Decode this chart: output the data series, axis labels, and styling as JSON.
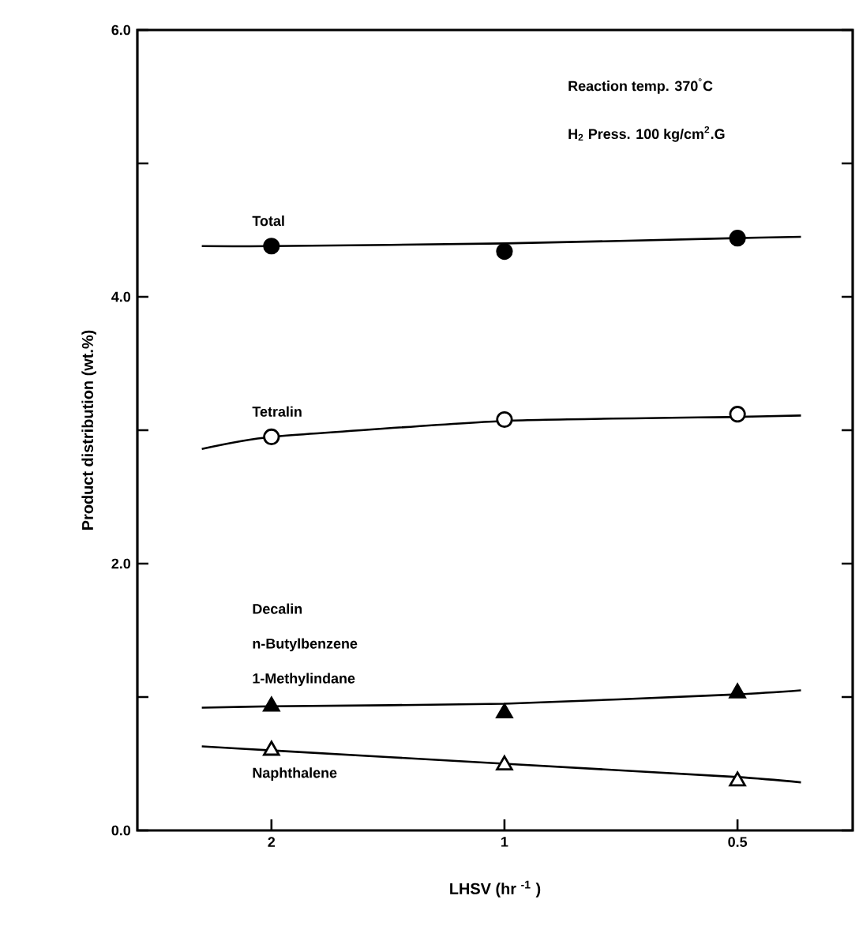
{
  "chart_data": {
    "type": "scatter",
    "xlabel": "LHSV  (hr $^{-1}$ )",
    "ylabel": "Product distribution (wt.%)",
    "log": "x",
    "xlim": [
      2.98,
      0.355
    ],
    "xticks": [
      2,
      1,
      0.5
    ],
    "ylim": [
      0,
      6
    ],
    "yticks": [
      {
        "value": 0,
        "label": "0.0"
      },
      {
        "value": 1,
        "label": null
      },
      {
        "value": 2,
        "label": "2.0"
      },
      {
        "value": 3,
        "label": null
      },
      {
        "value": 4,
        "label": "4.0"
      },
      {
        "value": 5,
        "label": null
      },
      {
        "value": 6,
        "label": "6.0"
      }
    ],
    "series": [
      {
        "name": "Total",
        "marker": "circle",
        "color": "#000000",
        "x": [
          2,
          1,
          0.5
        ],
        "values": [
          4.38,
          4.34,
          4.44
        ]
      },
      {
        "name": "Tetralin",
        "marker": "circle",
        "color": "#ffffff",
        "x": [
          2,
          1,
          0.5
        ],
        "values": [
          2.95,
          3.08,
          3.12
        ]
      },
      {
        "name": "Decalin n-Butylbenzene 1-Methylindane",
        "marker": "triangle",
        "color": "#000000",
        "x": [
          2,
          1,
          0.5
        ],
        "values": [
          0.93,
          0.88,
          1.03
        ]
      },
      {
        "name": "Naphthalene",
        "marker": "triangle",
        "color": "#ffffff",
        "x": [
          2,
          1,
          0.5
        ],
        "values": [
          0.6,
          0.49,
          0.37
        ]
      },
      {
        "type": "line",
        "color": "#000000",
        "x": [
          2.46,
          2,
          1,
          0.5,
          0.414
        ],
        "values": [
          4.38,
          4.38,
          4.4,
          4.44,
          4.45
        ]
      },
      {
        "type": "line",
        "color": "#000000",
        "x": [
          2.46,
          2,
          1,
          0.5,
          0.414
        ],
        "values": [
          2.86,
          2.95,
          3.07,
          3.1,
          3.11
        ]
      },
      {
        "type": "line",
        "color": "#000000",
        "x": [
          2.46,
          2,
          1,
          0.5,
          0.414
        ],
        "values": [
          0.92,
          0.93,
          0.95,
          1.02,
          1.05
        ]
      },
      {
        "type": "line",
        "color": "#000000",
        "x": [
          2.46,
          2,
          1,
          0.5,
          0.414
        ],
        "values": [
          0.63,
          0.6,
          0.5,
          0.4,
          0.36
        ]
      }
    ],
    "annotations": [
      "Reaction temp.  370$^{°}$C",
      "H$_{2}$  Press.  100 kg/cm$^{2}$.G"
    ]
  }
}
